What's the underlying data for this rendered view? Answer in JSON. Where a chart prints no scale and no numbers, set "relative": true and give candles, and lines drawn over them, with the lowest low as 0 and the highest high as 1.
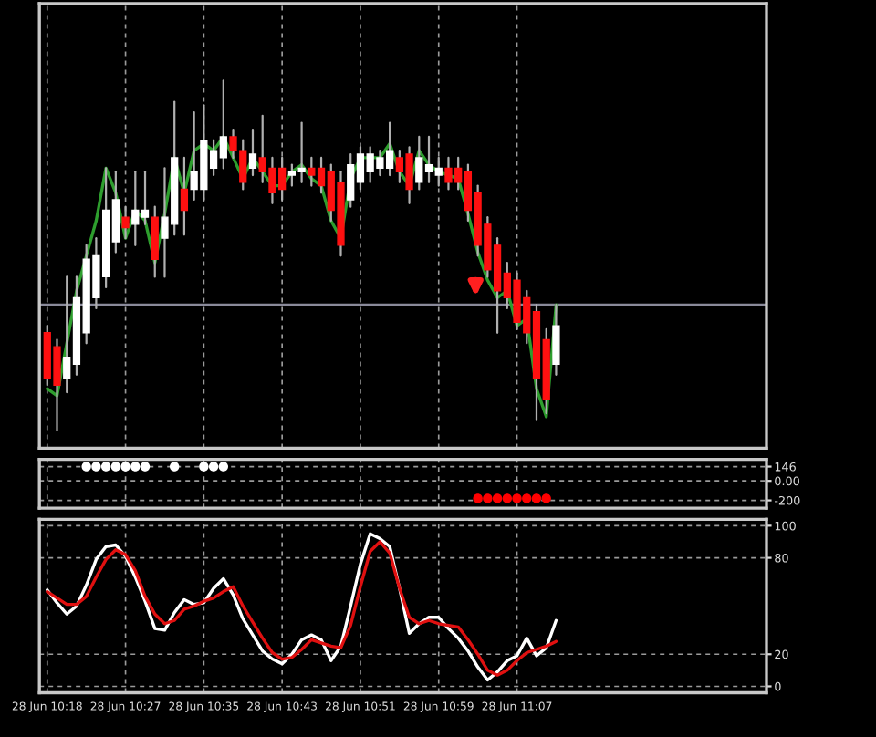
{
  "chart_data": [
    {
      "type": "candlestick",
      "relative": true,
      "tick_labels": false,
      "grid": "x",
      "categories": [
        null,
        null,
        null,
        null,
        null,
        null,
        null,
        null,
        null,
        null,
        null,
        null,
        null,
        null,
        null,
        null,
        null,
        null,
        null,
        null,
        null,
        null,
        null,
        null,
        null,
        null,
        null,
        null,
        null,
        null,
        null,
        null,
        null,
        null,
        null,
        null,
        null,
        null,
        null,
        null,
        null,
        null,
        null,
        null,
        null,
        null,
        null,
        null,
        null,
        null,
        null,
        null,
        null,
        null,
        null,
        null,
        null,
        null,
        null,
        null,
        null,
        null,
        null,
        null,
        null,
        null,
        null,
        null,
        null,
        null,
        null,
        null,
        null,
        null
      ],
      "ohlc": [
        [
          0.28,
          0.3,
          0.13,
          0.15
        ],
        [
          0.24,
          0.26,
          0,
          0.13
        ],
        [
          0.15,
          0.44,
          0.11,
          0.21
        ],
        [
          0.19,
          0.44,
          0.16,
          0.38
        ],
        [
          0.28,
          0.53,
          0.25,
          0.49
        ],
        [
          0.38,
          0.55,
          0.35,
          0.5
        ],
        [
          0.44,
          0.75,
          0.41,
          0.63
        ],
        [
          0.54,
          0.74,
          0.51,
          0.66
        ],
        [
          0.61,
          0.64,
          0.55,
          0.58
        ],
        [
          0.59,
          0.74,
          0.53,
          0.63
        ],
        [
          0.61,
          0.74,
          0.59,
          0.63
        ],
        [
          0.61,
          0.64,
          0.44,
          0.49
        ],
        [
          0.55,
          0.75,
          0.44,
          0.61
        ],
        [
          0.59,
          0.94,
          0.56,
          0.78
        ],
        [
          0.69,
          0.78,
          0.56,
          0.63
        ],
        [
          0.69,
          0.91,
          0.66,
          0.74
        ],
        [
          0.69,
          0.93,
          0.66,
          0.83
        ],
        [
          0.75,
          0.83,
          0.73,
          0.8
        ],
        [
          0.78,
          1,
          0.75,
          0.84
        ],
        [
          0.84,
          0.86,
          0.78,
          0.8
        ],
        [
          0.8,
          0.83,
          0.69,
          0.71
        ],
        [
          0.75,
          0.86,
          0.73,
          0.79
        ],
        [
          0.78,
          0.9,
          0.71,
          0.74
        ],
        [
          0.75,
          0.78,
          0.65,
          0.68
        ],
        [
          0.75,
          0.78,
          0.66,
          0.69
        ],
        [
          0.73,
          0.76,
          0.7,
          0.74
        ],
        [
          0.74,
          0.88,
          0.71,
          0.75
        ],
        [
          0.75,
          0.78,
          0.7,
          0.73
        ],
        [
          0.75,
          0.78,
          0.68,
          0.7
        ],
        [
          0.74,
          0.76,
          0.6,
          0.63
        ],
        [
          0.71,
          0.74,
          0.5,
          0.53
        ],
        [
          0.66,
          0.79,
          0.64,
          0.76
        ],
        [
          0.71,
          0.81,
          0.69,
          0.79
        ],
        [
          0.74,
          0.81,
          0.71,
          0.79
        ],
        [
          0.75,
          0.8,
          0.73,
          0.78
        ],
        [
          0.75,
          0.88,
          0.73,
          0.8
        ],
        [
          0.78,
          0.8,
          0.71,
          0.74
        ],
        [
          0.79,
          0.81,
          0.65,
          0.69
        ],
        [
          0.71,
          0.84,
          0.69,
          0.78
        ],
        [
          0.74,
          0.84,
          0.71,
          0.76
        ],
        [
          0.73,
          0.78,
          0.7,
          0.75
        ],
        [
          0.75,
          0.78,
          0.69,
          0.71
        ],
        [
          0.75,
          0.78,
          0.69,
          0.71
        ],
        [
          0.74,
          0.76,
          0.6,
          0.63
        ],
        [
          0.68,
          0.7,
          0.5,
          0.53
        ],
        [
          0.59,
          0.61,
          0.44,
          0.46
        ],
        [
          0.53,
          0.55,
          0.28,
          0.4
        ],
        [
          0.45,
          0.48,
          0.35,
          0.38
        ],
        [
          0.43,
          0.45,
          0.29,
          0.31
        ],
        [
          0.38,
          0.4,
          0.25,
          0.28
        ],
        [
          0.34,
          0.36,
          0.03,
          0.15
        ],
        [
          0.26,
          0.29,
          0.05,
          0.09
        ],
        [
          0.19,
          0.36,
          0.16,
          0.3
        ],
        null,
        null,
        null,
        null,
        null,
        null,
        null,
        null,
        null,
        null,
        null,
        null,
        null,
        null,
        null,
        null,
        null,
        null,
        null,
        null,
        null
      ],
      "series": [
        {
          "type": "line",
          "color": "#2e9e2e",
          "values": [
            0.12,
            0.1,
            0.25,
            0.4,
            0.5,
            0.6,
            0.75,
            0.68,
            0.55,
            0.63,
            0.6,
            0.48,
            0.62,
            0.78,
            0.68,
            0.8,
            0.82,
            0.8,
            0.84,
            0.78,
            0.72,
            0.78,
            0.74,
            0.7,
            0.7,
            0.74,
            0.76,
            0.72,
            0.7,
            0.6,
            0.55,
            0.72,
            0.78,
            0.78,
            0.78,
            0.82,
            0.74,
            0.7,
            0.8,
            0.76,
            0.74,
            0.73,
            0.72,
            0.62,
            0.51,
            0.43,
            0.38,
            0.4,
            0.3,
            0.32,
            0.12,
            0.04,
            0.36,
            null,
            null,
            null,
            null,
            null,
            null,
            null,
            null,
            null,
            null,
            null,
            null,
            null,
            null,
            null,
            null,
            null,
            null,
            null,
            null,
            null
          ]
        }
      ],
      "ref_lines": [
        {
          "axis": "y",
          "value": 0.36,
          "color": "#8a8a9a"
        }
      ]
    },
    {
      "type": "scatter",
      "tick_labels": "y",
      "grid": true,
      "marker": "circle",
      "categories": [
        null,
        null,
        null,
        null,
        null,
        null,
        null,
        null,
        null,
        null,
        null,
        null,
        null,
        null,
        null,
        null,
        null,
        null,
        null,
        null,
        null,
        null,
        null,
        null,
        null,
        null,
        null,
        null,
        null,
        null,
        null,
        null,
        null,
        null,
        null,
        null,
        null,
        null,
        null,
        null,
        null,
        null,
        null,
        null,
        null,
        null,
        null,
        null,
        null,
        null,
        null,
        null,
        null,
        null,
        null,
        null,
        null,
        null,
        null,
        null,
        null,
        null,
        null,
        null,
        null,
        null,
        null,
        null,
        null,
        null,
        null,
        null,
        null,
        null
      ],
      "ylim": [
        -280,
        220
      ],
      "yticks": [
        146,
        {
          "value": 0,
          "label": "0.00"
        },
        -200
      ],
      "series": [
        {
          "color": "#ffffff",
          "values": [
            null,
            null,
            null,
            null,
            146,
            146,
            146,
            146,
            146,
            146,
            146,
            null,
            null,
            146,
            null,
            null,
            146,
            146,
            146,
            null,
            null,
            null,
            null,
            null,
            null,
            null,
            null,
            null,
            null,
            null,
            null,
            null,
            null,
            null,
            null,
            null,
            null,
            null,
            null,
            null,
            null,
            null,
            null,
            null,
            null,
            null,
            null,
            null,
            null,
            null,
            null,
            null,
            null,
            null,
            null,
            null,
            null,
            null,
            null,
            null,
            null,
            null,
            null,
            null,
            null,
            null,
            null,
            null,
            null,
            null,
            null,
            null,
            null,
            null
          ]
        },
        {
          "color": "#ff0000",
          "values": [
            null,
            null,
            null,
            null,
            null,
            null,
            null,
            null,
            null,
            null,
            null,
            null,
            null,
            null,
            null,
            null,
            null,
            null,
            null,
            null,
            null,
            null,
            null,
            null,
            null,
            null,
            null,
            null,
            null,
            null,
            null,
            null,
            null,
            null,
            null,
            null,
            null,
            null,
            null,
            null,
            null,
            null,
            null,
            null,
            -180,
            -180,
            -180,
            -180,
            -180,
            -180,
            -180,
            -180,
            null,
            null,
            null,
            null,
            null,
            null,
            null,
            null,
            null,
            null,
            null,
            null,
            null,
            null,
            null,
            null,
            null,
            null,
            null,
            null,
            null,
            null
          ]
        }
      ]
    },
    {
      "type": "line",
      "grid": true,
      "categories": [
        "28 Jun 10:18",
        null,
        null,
        null,
        null,
        null,
        null,
        null,
        "28 Jun 10:27",
        null,
        null,
        null,
        null,
        null,
        null,
        null,
        "28 Jun 10:35",
        null,
        null,
        null,
        null,
        null,
        null,
        null,
        "28 Jun 10:43",
        null,
        null,
        null,
        null,
        null,
        null,
        null,
        "28 Jun 10:51",
        null,
        null,
        null,
        null,
        null,
        null,
        null,
        "28 Jun 10:59",
        null,
        null,
        null,
        null,
        null,
        null,
        null,
        "28 Jun 11:07",
        null,
        null,
        null,
        null,
        null,
        null,
        null,
        null,
        null,
        null,
        null,
        null,
        null,
        null,
        null,
        null,
        null,
        null,
        null,
        null,
        null,
        null,
        null,
        null,
        null
      ],
      "ylim": [
        -4,
        104
      ],
      "yticks": [
        0,
        20,
        80,
        100
      ],
      "series": [
        {
          "color": "#ffffff",
          "values": [
            60,
            52,
            45,
            50,
            63,
            79,
            87,
            88,
            81,
            68,
            53,
            36,
            35,
            46,
            54,
            51,
            52,
            61,
            67,
            57,
            42,
            32,
            22,
            17,
            14,
            20,
            29,
            32,
            29,
            16,
            25,
            50,
            76,
            95,
            92,
            87,
            61,
            33,
            39,
            43,
            43,
            36,
            30,
            22,
            12,
            4,
            9,
            16,
            19,
            30,
            19,
            24,
            41,
            null,
            null,
            null,
            null,
            null,
            null,
            null,
            null,
            null,
            null,
            null,
            null,
            null,
            null,
            null,
            null,
            null,
            null,
            null,
            null,
            null
          ]
        },
        {
          "color": "#e01010",
          "values": [
            59,
            55,
            51,
            51,
            56,
            68,
            79,
            85,
            82,
            72,
            56,
            45,
            39,
            41,
            48,
            50,
            53,
            55,
            59,
            62,
            50,
            40,
            30,
            21,
            17,
            18,
            23,
            29,
            27,
            25,
            24,
            38,
            62,
            84,
            90,
            83,
            61,
            43,
            39,
            41,
            39,
            38,
            37,
            29,
            20,
            10,
            7,
            10,
            16,
            21,
            23,
            25,
            28,
            null,
            null,
            null,
            null,
            null,
            null,
            null,
            null,
            null,
            null,
            null,
            null,
            null,
            null,
            null,
            null,
            null,
            null,
            null,
            null,
            null
          ]
        }
      ]
    }
  ]
}
